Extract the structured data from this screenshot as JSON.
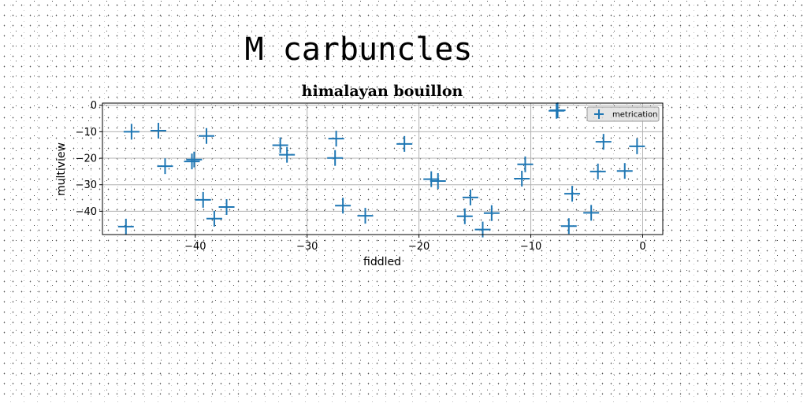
{
  "suptitle": "M carbuncles",
  "chart_data": {
    "type": "scatter",
    "title": "himalayan bouillon",
    "xlabel": "fiddled",
    "ylabel": "multiview",
    "xlim": [
      -48.3,
      1.8
    ],
    "ylim": [
      -48.8,
      0.8
    ],
    "xticks": [
      -40,
      -30,
      -20,
      -10,
      0
    ],
    "yticks": [
      0,
      -10,
      -20,
      -30,
      -40
    ],
    "xtick_labels": [
      "−40",
      "−30",
      "−20",
      "−10",
      "0"
    ],
    "ytick_labels": [
      "0",
      "−10",
      "−20",
      "−30",
      "−40"
    ],
    "grid": true,
    "legend": {
      "position": "top-right",
      "entries": [
        "metrication"
      ]
    },
    "series": [
      {
        "name": "metrication",
        "color": "#1f77b4",
        "marker": "plus",
        "x": [
          -46.2,
          -45.7,
          -43.3,
          -42.7,
          -40.3,
          -40.1,
          -39.3,
          -39.0,
          -38.3,
          -37.2,
          -32.4,
          -31.8,
          -27.5,
          -27.4,
          -26.8,
          -24.8,
          -21.3,
          -18.9,
          -18.3,
          -15.9,
          -15.4,
          -14.3,
          -13.5,
          -10.8,
          -10.5,
          -7.7,
          -7.6,
          -6.6,
          -6.3,
          -4.6,
          -4.0,
          -3.5,
          -1.6,
          -0.5
        ],
        "y": [
          -45.8,
          -10.0,
          -9.6,
          -23.0,
          -21.2,
          -20.5,
          -35.7,
          -11.6,
          -42.8,
          -38.4,
          -15.1,
          -18.7,
          -19.9,
          -12.6,
          -37.9,
          -41.7,
          -14.6,
          -27.9,
          -28.6,
          -41.9,
          -34.8,
          -46.9,
          -40.7,
          -27.7,
          -22.3,
          -2.1,
          -1.9,
          -45.6,
          -33.4,
          -40.6,
          -25.0,
          -13.8,
          -24.8,
          -15.5
        ]
      }
    ]
  }
}
